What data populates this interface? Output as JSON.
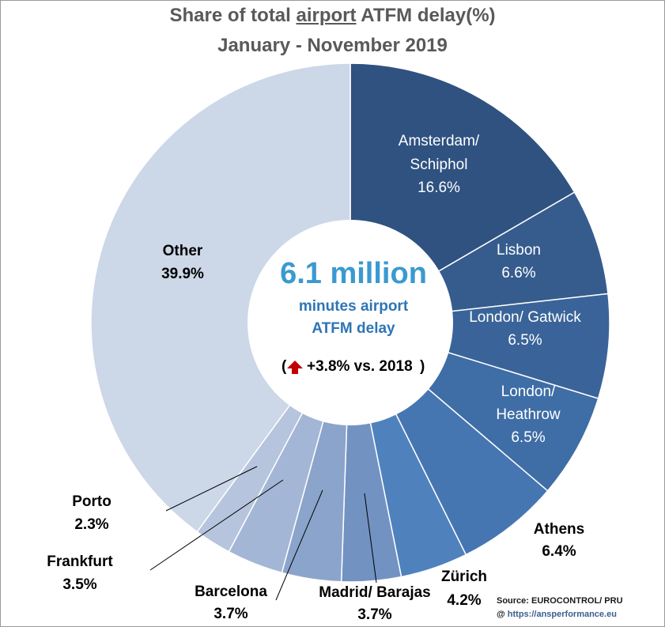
{
  "title": {
    "prefix": "Share of total ",
    "underlined": "airport",
    "suffix": " ATFM delay(%)",
    "subtitle": "January - November 2019"
  },
  "center": {
    "headline": "6.1 million",
    "line1": "minutes airport",
    "line2": "ATFM delay",
    "change": "+3.8% vs. 2018",
    "open_paren": "(",
    "close_paren": ")"
  },
  "source": {
    "text": "Source: EUROCONTROL/ PRU",
    "at": "@",
    "link": "https://ansperformance.eu"
  },
  "colors": {
    "headline": "#3a9ad0",
    "subtext": "#2e75b6",
    "arrow": "#c00000"
  },
  "chart_data": {
    "type": "pie",
    "variant": "donut",
    "title": "Share of total airport ATFM delay(%)",
    "subtitle": "January - November 2019",
    "unit": "%",
    "slices": [
      {
        "label": "Amsterdam/ Schiphol",
        "value": 16.6,
        "value_label": "16.6%",
        "color": "#2f5280"
      },
      {
        "label": "Lisbon",
        "value": 6.6,
        "value_label": "6.6%",
        "color": "#355c8d"
      },
      {
        "label": "London/ Gatwick",
        "value": 6.5,
        "value_label": "6.5%",
        "color": "#3a6499"
      },
      {
        "label": "London/ Heathrow",
        "value": 6.5,
        "value_label": "6.5%",
        "color": "#3f6da6"
      },
      {
        "label": "Athens",
        "value": 6.4,
        "value_label": "6.4%",
        "color": "#4676b2"
      },
      {
        "label": "Zürich",
        "value": 4.2,
        "value_label": "4.2%",
        "color": "#4f82bd"
      },
      {
        "label": "Madrid/ Barajas",
        "value": 3.7,
        "value_label": "3.7%",
        "color": "#7292c2"
      },
      {
        "label": "Barcelona",
        "value": 3.7,
        "value_label": "3.7%",
        "color": "#8ba4cb"
      },
      {
        "label": "Frankfurt",
        "value": 3.5,
        "value_label": "3.5%",
        "color": "#a3b6d5"
      },
      {
        "label": "Porto",
        "value": 2.3,
        "value_label": "2.3%",
        "color": "#b6c4dd"
      },
      {
        "label": "Other",
        "value": 39.9,
        "value_label": "39.9%",
        "color": "#ccd7e7"
      }
    ]
  }
}
